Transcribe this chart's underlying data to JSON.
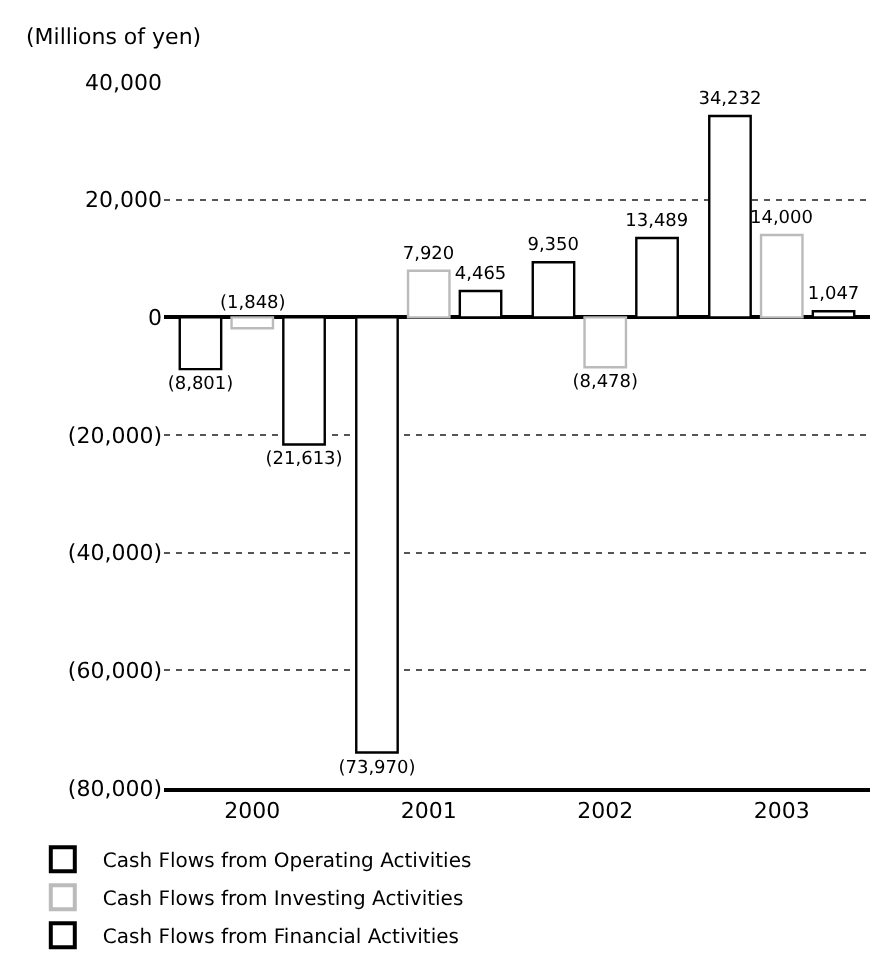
{
  "chart_data": {
    "type": "bar",
    "ylabel": "(Millions of yen)",
    "categories": [
      "2000",
      "2001",
      "2002",
      "2003"
    ],
    "series": [
      {
        "name": "Cash Flows from Operating Activities",
        "color": "#000000",
        "values": [
          -8801,
          -73970,
          9350,
          34232
        ],
        "value_labels": [
          "(8,801)",
          "(73,970)",
          "9,350",
          "34,232"
        ]
      },
      {
        "name": "Cash Flows from Investing Activities",
        "color": "#bbbbbb",
        "values": [
          -1848,
          7920,
          -8478,
          14000
        ],
        "value_labels": [
          "(1,848)",
          "7,920",
          "(8,478)",
          "14,000"
        ]
      },
      {
        "name": "Cash Flows from Financial Activities",
        "color": "#000000",
        "values": [
          -21613,
          4465,
          13489,
          1047
        ],
        "value_labels": [
          "(21,613)",
          "4,465",
          "13,489",
          "1,047"
        ]
      }
    ],
    "ylim": [
      -80000,
      40000
    ],
    "yticks": [
      {
        "value": 40000,
        "label": "40,000"
      },
      {
        "value": 20000,
        "label": "20,000"
      },
      0,
      {
        "value": -20000,
        "label": "(20,000)"
      },
      {
        "value": -40000,
        "label": "(40,000)"
      },
      {
        "value": -60000,
        "label": "(60,000)"
      },
      {
        "value": -80000,
        "label": "(80,000)"
      }
    ],
    "grid": "y",
    "legend": "bottom left"
  }
}
